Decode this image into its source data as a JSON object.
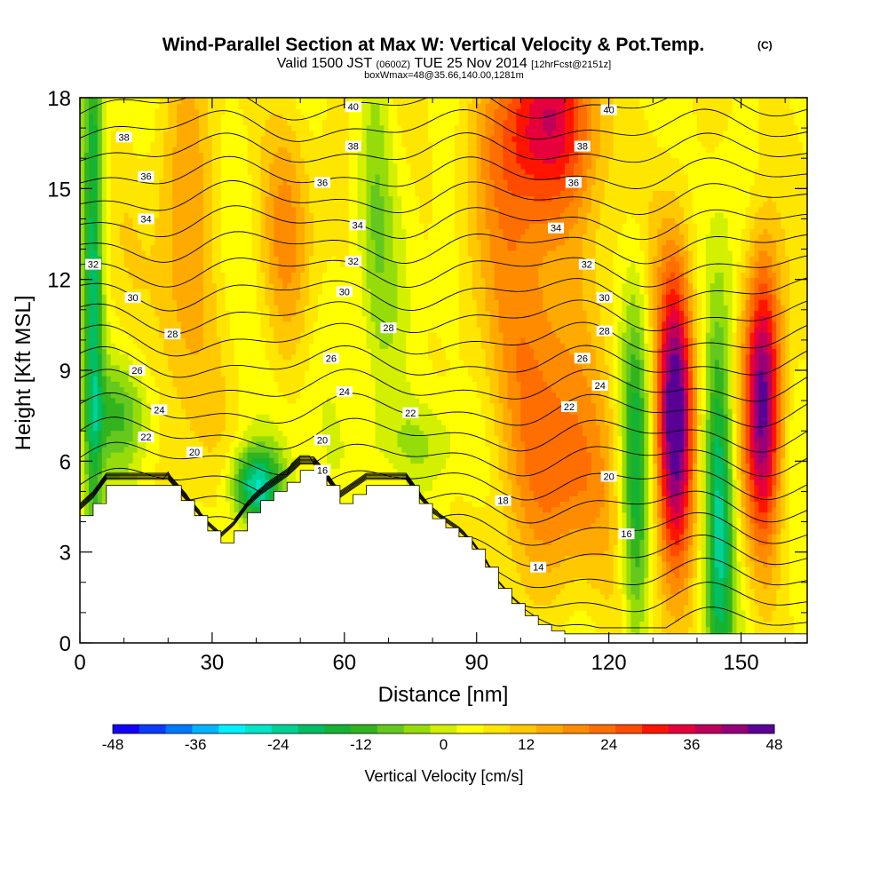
{
  "chart_data": {
    "type": "heatmap",
    "title": "Wind-Parallel Section at Max W: Vertical Velocity & Pot.Temp.",
    "title_mark": "(C)",
    "subtitle": {
      "valid_prefix": "Valid 1500 JST",
      "utc": "(0600Z)",
      "date": "TUE 25 Nov 2014",
      "forecast": "[12hrFcst@2151z]"
    },
    "box_info": "boxWmax=48@35.66,140.00,1281m",
    "xlabel": "Distance [nm]",
    "ylabel": "Height [Kft MSL]",
    "xlim": [
      0,
      165
    ],
    "ylim": [
      0,
      18
    ],
    "x_ticks": [
      "0",
      "30",
      "60",
      "90",
      "120",
      "150"
    ],
    "y_ticks": [
      "0",
      "3",
      "6",
      "9",
      "12",
      "15",
      "18"
    ],
    "terrain": {
      "x": [
        0,
        3,
        6,
        20,
        23,
        26,
        29,
        32,
        35,
        38,
        41,
        44,
        47,
        50,
        53,
        56,
        59,
        62,
        65,
        74,
        77,
        80,
        83,
        86,
        89,
        92,
        95,
        98,
        101,
        104,
        107,
        110,
        113,
        116,
        119,
        122,
        125,
        128,
        131,
        134,
        137,
        140,
        143,
        146,
        149,
        152,
        155,
        158,
        161,
        165
      ],
      "y": [
        4.2,
        4.6,
        5.2,
        5.2,
        4.7,
        4.2,
        3.7,
        3.3,
        3.7,
        4.3,
        4.7,
        5.0,
        5.3,
        5.7,
        5.7,
        5.2,
        4.6,
        4.9,
        5.2,
        5.2,
        4.6,
        4.1,
        3.8,
        3.5,
        3.1,
        2.5,
        1.8,
        1.3,
        0.9,
        0.6,
        0.4,
        0.3,
        0.3,
        0.3,
        0.3,
        0.3,
        0.3,
        0.3,
        0.3,
        0.3,
        0.3,
        0.3,
        0.3,
        0.3,
        0.3,
        0.3,
        0.3,
        0.3,
        0.3,
        0.3
      ]
    },
    "vertical_velocity_features": [
      {
        "x": 3,
        "y": 12,
        "sx": 1.6,
        "sy": 8,
        "w": -24
      },
      {
        "x": 9,
        "y": 7.6,
        "sx": 5,
        "sy": 1.2,
        "w": -12
      },
      {
        "x": 40,
        "y": 5.2,
        "sx": 4,
        "sy": 0.9,
        "w": -30
      },
      {
        "x": 75,
        "y": 6.6,
        "sx": 8,
        "sy": 1.0,
        "w": -8
      },
      {
        "x": 67,
        "y": 15.0,
        "sx": 2.5,
        "sy": 5,
        "w": -8
      },
      {
        "x": 83,
        "y": 12.2,
        "sx": 3,
        "sy": 2,
        "w": -4
      },
      {
        "x": 70,
        "y": 9.5,
        "sx": 3,
        "sy": 2,
        "w": -4
      },
      {
        "x": 105,
        "y": 17.2,
        "sx": 9,
        "sy": 2.2,
        "w": 26
      },
      {
        "x": 103,
        "y": 10.5,
        "sx": 9,
        "sy": 5,
        "w": 16
      },
      {
        "x": 135,
        "y": 7.5,
        "sx": 3,
        "sy": 3.5,
        "w": 48
      },
      {
        "x": 126,
        "y": 5.5,
        "sx": 2.3,
        "sy": 4.5,
        "w": -22
      },
      {
        "x": 145,
        "y": 4.5,
        "sx": 2.3,
        "sy": 4.5,
        "w": -28
      },
      {
        "x": 155,
        "y": 8.2,
        "sx": 3,
        "sy": 3.5,
        "w": 42
      },
      {
        "x": 24,
        "y": 13.0,
        "sx": 5,
        "sy": 4,
        "w": 14
      },
      {
        "x": 47,
        "y": 14.0,
        "sx": 4,
        "sy": 3,
        "w": 12
      },
      {
        "x": 113,
        "y": 5.0,
        "sx": 8,
        "sy": 2.5,
        "w": 12
      }
    ],
    "theta_contours": [
      {
        "value": 14,
        "label_xy": [
          104,
          2.5
        ]
      },
      {
        "value": 16,
        "label_xy": [
          55,
          5.7
        ]
      },
      {
        "value": 16,
        "label_xy": [
          124,
          3.6
        ]
      },
      {
        "value": 18,
        "label_xy": [
          96,
          4.7
        ]
      },
      {
        "value": 20,
        "label_xy": [
          26,
          6.3
        ]
      },
      {
        "value": 20,
        "label_xy": [
          55,
          6.7
        ]
      },
      {
        "value": 20,
        "label_xy": [
          120,
          5.5
        ]
      },
      {
        "value": 22,
        "label_xy": [
          15,
          6.8
        ]
      },
      {
        "value": 22,
        "label_xy": [
          75,
          7.6
        ]
      },
      {
        "value": 22,
        "label_xy": [
          111,
          7.8
        ]
      },
      {
        "value": 24,
        "label_xy": [
          18,
          7.7
        ]
      },
      {
        "value": 24,
        "label_xy": [
          60,
          8.3
        ]
      },
      {
        "value": 24,
        "label_xy": [
          118,
          8.5
        ]
      },
      {
        "value": 26,
        "label_xy": [
          13,
          9.0
        ]
      },
      {
        "value": 26,
        "label_xy": [
          57,
          9.4
        ]
      },
      {
        "value": 26,
        "label_xy": [
          114,
          9.4
        ]
      },
      {
        "value": 28,
        "label_xy": [
          21,
          10.2
        ]
      },
      {
        "value": 28,
        "label_xy": [
          70,
          10.4
        ]
      },
      {
        "value": 28,
        "label_xy": [
          119,
          10.3
        ]
      },
      {
        "value": 30,
        "label_xy": [
          12,
          11.4
        ]
      },
      {
        "value": 30,
        "label_xy": [
          60,
          11.6
        ]
      },
      {
        "value": 30,
        "label_xy": [
          119,
          11.4
        ]
      },
      {
        "value": 32,
        "label_xy": [
          3,
          12.5
        ]
      },
      {
        "value": 32,
        "label_xy": [
          62,
          12.6
        ]
      },
      {
        "value": 32,
        "label_xy": [
          115,
          12.5
        ]
      },
      {
        "value": 34,
        "label_xy": [
          15,
          14.0
        ]
      },
      {
        "value": 34,
        "label_xy": [
          63,
          13.8
        ]
      },
      {
        "value": 34,
        "label_xy": [
          108,
          13.7
        ]
      },
      {
        "value": 36,
        "label_xy": [
          15,
          15.4
        ]
      },
      {
        "value": 36,
        "label_xy": [
          55,
          15.2
        ]
      },
      {
        "value": 36,
        "label_xy": [
          112,
          15.2
        ]
      },
      {
        "value": 38,
        "label_xy": [
          10,
          16.7
        ]
      },
      {
        "value": 38,
        "label_xy": [
          62,
          16.4
        ]
      },
      {
        "value": 38,
        "label_xy": [
          114,
          16.4
        ]
      },
      {
        "value": 40,
        "label_xy": [
          62,
          17.7
        ]
      },
      {
        "value": 40,
        "label_xy": [
          120,
          17.6
        ]
      }
    ],
    "colorbar": {
      "label": "Vertical Velocity [cm/s]",
      "min": -48,
      "max": 48,
      "step": 4,
      "ticks": [
        "-48",
        "-36",
        "-24",
        "-12",
        "0",
        "12",
        "24",
        "36",
        "48"
      ],
      "colors": [
        "#1400ff",
        "#0a3cff",
        "#0078ff",
        "#00b4ff",
        "#00f0ff",
        "#00e6c8",
        "#00d296",
        "#00be64",
        "#14b432",
        "#32b41e",
        "#64c81e",
        "#96dc0a",
        "#d2f000",
        "#ffff00",
        "#ffe600",
        "#ffc800",
        "#ffaa00",
        "#ff8c00",
        "#ff6e00",
        "#ff4b00",
        "#ff1400",
        "#e6003c",
        "#be005a",
        "#960078",
        "#5a0096"
      ]
    }
  }
}
